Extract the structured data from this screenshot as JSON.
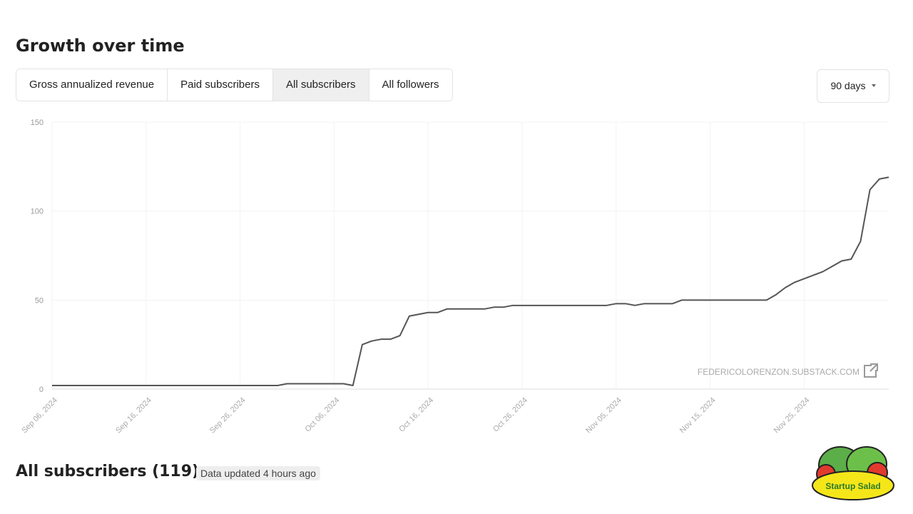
{
  "header": {
    "title": "Growth over time",
    "tabs": [
      "Gross annualized revenue",
      "Paid subscribers",
      "All subscribers",
      "All followers"
    ],
    "active_tab": 2,
    "range": "90 days"
  },
  "chart_data": {
    "type": "line",
    "x": [
      "2024-09-06",
      "2024-09-30",
      "2024-10-01",
      "2024-10-07",
      "2024-10-08",
      "2024-10-09",
      "2024-10-10",
      "2024-10-11",
      "2024-10-12",
      "2024-10-13",
      "2024-10-14",
      "2024-10-15",
      "2024-10-16",
      "2024-10-17",
      "2024-10-18",
      "2024-10-22",
      "2024-10-23",
      "2024-10-24",
      "2024-10-25",
      "2024-11-04",
      "2024-11-05",
      "2024-11-06",
      "2024-11-07",
      "2024-11-08",
      "2024-11-11",
      "2024-11-12",
      "2024-11-21",
      "2024-11-22",
      "2024-11-23",
      "2024-11-24",
      "2024-11-25",
      "2024-11-26",
      "2024-11-27",
      "2024-11-28",
      "2024-11-29",
      "2024-11-30",
      "2024-12-01",
      "2024-12-02",
      "2024-12-03",
      "2024-12-04"
    ],
    "series": [
      {
        "name": "All subscribers",
        "color": "#555555",
        "values": [
          2,
          2,
          3,
          3,
          2,
          25,
          27,
          28,
          28,
          30,
          41,
          42,
          43,
          43,
          45,
          45,
          46,
          46,
          47,
          47,
          48,
          48,
          47,
          48,
          48,
          50,
          50,
          53,
          57,
          60,
          62,
          64,
          66,
          69,
          72,
          73,
          83,
          112,
          118,
          119
        ]
      }
    ],
    "xlim": [
      "2024-09-06",
      "2024-12-04"
    ],
    "xticks": [
      {
        "value": "2024-09-06",
        "label": "Sep 06, 2024"
      },
      {
        "value": "2024-09-16",
        "label": "Sep 16, 2024"
      },
      {
        "value": "2024-09-26",
        "label": "Sep 26, 2024"
      },
      {
        "value": "2024-10-06",
        "label": "Oct 06, 2024"
      },
      {
        "value": "2024-10-16",
        "label": "Oct 16, 2024"
      },
      {
        "value": "2024-10-26",
        "label": "Oct 26, 2024"
      },
      {
        "value": "2024-11-05",
        "label": "Nov 05, 2024"
      },
      {
        "value": "2024-11-15",
        "label": "Nov 15, 2024"
      },
      {
        "value": "2024-11-25",
        "label": "Nov 25, 2024"
      }
    ],
    "ylim": [
      0,
      150
    ],
    "yticks": [
      0,
      50,
      100,
      150
    ],
    "grid": true,
    "watermark": "FEDERICOLORENZON.SUBSTACK.COM"
  },
  "footer": {
    "title": "All subscribers (119)",
    "badge": "Data updated 4 hours ago",
    "logo": "Startup Salad"
  }
}
